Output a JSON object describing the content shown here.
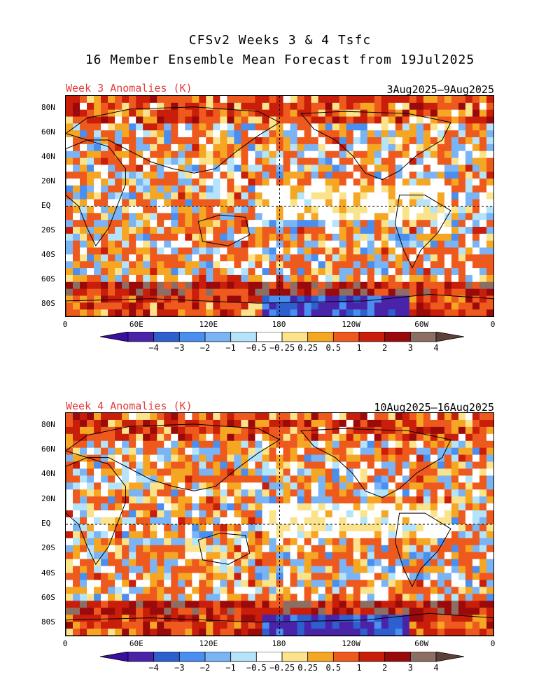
{
  "title": {
    "line1": "CFSv2 Weeks 3 & 4 Tsfc",
    "line2": "16 Member Ensemble Mean Forecast from 19Jul2025"
  },
  "panels": [
    {
      "label": "Week 3 Anomalies (K)",
      "date_range": "3Aug2025—9Aug2025"
    },
    {
      "label": "Week 4 Anomalies (K)",
      "date_range": "10Aug2025—16Aug2025"
    }
  ],
  "lat_ticks": [
    "80N",
    "60N",
    "40N",
    "20N",
    "EQ",
    "20S",
    "40S",
    "60S",
    "80S"
  ],
  "lon_ticks": [
    "0",
    "60E",
    "120E",
    "180",
    "120W",
    "60W",
    "0"
  ],
  "colorbar": {
    "labels": [
      "−4",
      "−3",
      "−2",
      "−1",
      "−0.5",
      "−0.25",
      "0.25",
      "0.5",
      "1",
      "2",
      "3",
      "4"
    ],
    "colors": [
      "#4a24a8",
      "#2d5fcf",
      "#4a8ef0",
      "#7ab4f5",
      "#b4e3fa",
      "#ffffff",
      "#fbe38c",
      "#f5a623",
      "#ee5a1e",
      "#c81e0a",
      "#9b0a0a",
      "#8d6e63"
    ],
    "low_cap": "#3a0ea0",
    "high_cap": "#5d4037"
  }
}
